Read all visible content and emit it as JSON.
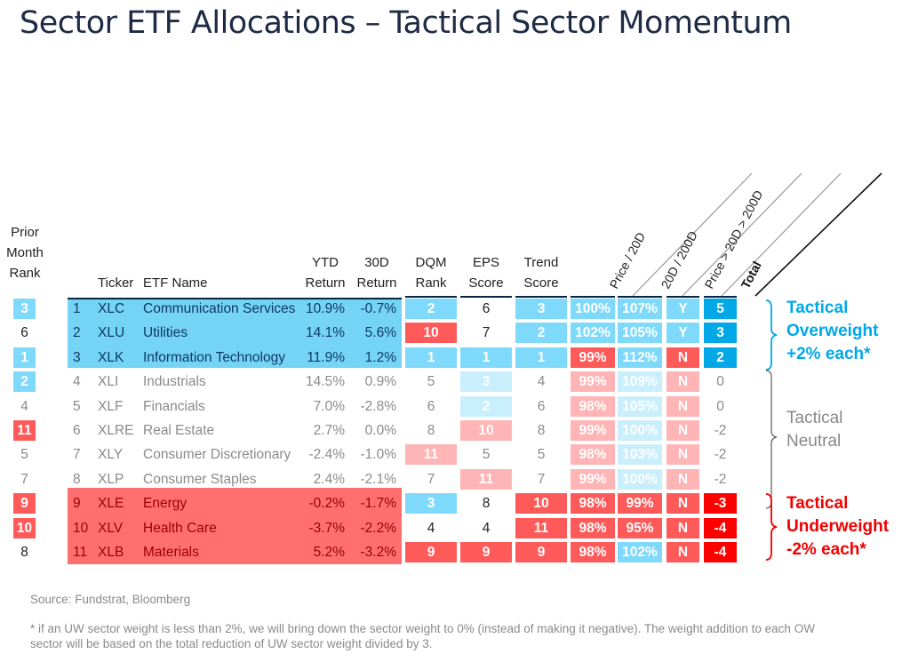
{
  "title": "Sector ETF Allocations – Tactical Sector Momentum",
  "headers": {
    "prior": [
      "Prior",
      "Month",
      "Rank"
    ],
    "ticker": "Ticker",
    "name": "ETF Name",
    "ytd": [
      "YTD",
      "Return"
    ],
    "d30": [
      "30D",
      "Return"
    ],
    "dqm": [
      "DQM",
      "Rank"
    ],
    "eps": [
      "EPS",
      "Score"
    ],
    "trend": [
      "Trend",
      "Score"
    ],
    "diag": [
      "Price / 20D",
      "20D / 200D",
      "Price > 20D > 200D",
      "Total"
    ]
  },
  "colors": {
    "blue": "#7fd9fa",
    "red": "#ff5a5a",
    "light_blue": "#c9eefc",
    "light_red": "#ffb5b5",
    "total_blue": "#00a8e8",
    "total_red": "#ff0000"
  },
  "rows": [
    {
      "group": "ow",
      "prior": "3",
      "prior_c": "blue",
      "n": "1",
      "ticker": "XLC",
      "name": "Communication Services",
      "ytd": "10.9%",
      "d30": "-0.7%",
      "dqm": "2",
      "dqm_c": "blue",
      "eps": "6",
      "eps_c": "none",
      "trend": "3",
      "trend_c": "blue",
      "p20": "100%",
      "p20_c": "blue",
      "r200": "107%",
      "r200_c": "blue",
      "yn": "Y",
      "yn_c": "blue",
      "total": "5",
      "total_c": "dblue"
    },
    {
      "group": "ow",
      "prior": "6",
      "prior_c": "none",
      "n": "2",
      "ticker": "XLU",
      "name": "Utilities",
      "ytd": "14.1%",
      "d30": "5.6%",
      "dqm": "10",
      "dqm_c": "red",
      "eps": "7",
      "eps_c": "none",
      "trend": "2",
      "trend_c": "blue",
      "p20": "102%",
      "p20_c": "blue",
      "r200": "105%",
      "r200_c": "blue",
      "yn": "Y",
      "yn_c": "blue",
      "total": "3",
      "total_c": "dblue"
    },
    {
      "group": "ow",
      "prior": "1",
      "prior_c": "blue",
      "n": "3",
      "ticker": "XLK",
      "name": "Information Technology",
      "ytd": "11.9%",
      "d30": "1.2%",
      "dqm": "1",
      "dqm_c": "blue",
      "eps": "1",
      "eps_c": "blue",
      "trend": "1",
      "trend_c": "blue",
      "p20": "99%",
      "p20_c": "red",
      "r200": "112%",
      "r200_c": "blue",
      "yn": "N",
      "yn_c": "red",
      "total": "2",
      "total_c": "dblue"
    },
    {
      "group": "neutral",
      "prior": "2",
      "prior_c": "blue",
      "n": "4",
      "ticker": "XLI",
      "name": "Industrials",
      "ytd": "14.5%",
      "d30": "0.9%",
      "dqm": "5",
      "dqm_c": "none",
      "eps": "3",
      "eps_c": "lblue",
      "trend": "4",
      "trend_c": "none",
      "p20": "99%",
      "p20_c": "lred",
      "r200": "109%",
      "r200_c": "lblue",
      "yn": "N",
      "yn_c": "lred",
      "total": "0",
      "total_c": "none"
    },
    {
      "group": "neutral",
      "prior": "4",
      "prior_c": "none",
      "n": "5",
      "ticker": "XLF",
      "name": "Financials",
      "ytd": "7.0%",
      "d30": "-2.8%",
      "dqm": "6",
      "dqm_c": "none",
      "eps": "2",
      "eps_c": "lblue",
      "trend": "6",
      "trend_c": "none",
      "p20": "98%",
      "p20_c": "lred",
      "r200": "105%",
      "r200_c": "lblue",
      "yn": "N",
      "yn_c": "lred",
      "total": "0",
      "total_c": "none"
    },
    {
      "group": "neutral",
      "prior": "11",
      "prior_c": "red",
      "n": "6",
      "ticker": "XLRE",
      "name": "Real Estate",
      "ytd": "2.7%",
      "d30": "0.0%",
      "dqm": "8",
      "dqm_c": "none",
      "eps": "10",
      "eps_c": "lred",
      "trend": "8",
      "trend_c": "none",
      "p20": "99%",
      "p20_c": "lred",
      "r200": "100%",
      "r200_c": "lblue",
      "yn": "N",
      "yn_c": "lred",
      "total": "-2",
      "total_c": "none"
    },
    {
      "group": "neutral",
      "prior": "5",
      "prior_c": "none",
      "n": "7",
      "ticker": "XLY",
      "name": "Consumer Discretionary",
      "ytd": "-2.4%",
      "d30": "-1.0%",
      "dqm": "11",
      "dqm_c": "lred",
      "eps": "5",
      "eps_c": "none",
      "trend": "5",
      "trend_c": "none",
      "p20": "98%",
      "p20_c": "lred",
      "r200": "103%",
      "r200_c": "lblue",
      "yn": "N",
      "yn_c": "lred",
      "total": "-2",
      "total_c": "none"
    },
    {
      "group": "neutral",
      "prior": "7",
      "prior_c": "none",
      "n": "8",
      "ticker": "XLP",
      "name": "Consumer Staples",
      "ytd": "2.4%",
      "d30": "-2.1%",
      "dqm": "7",
      "dqm_c": "none",
      "eps": "11",
      "eps_c": "lred",
      "trend": "7",
      "trend_c": "none",
      "p20": "99%",
      "p20_c": "lred",
      "r200": "100%",
      "r200_c": "lblue",
      "yn": "N",
      "yn_c": "lred",
      "total": "-2",
      "total_c": "none"
    },
    {
      "group": "uw",
      "prior": "9",
      "prior_c": "red",
      "n": "9",
      "ticker": "XLE",
      "name": "Energy",
      "ytd": "-0.2%",
      "d30": "-1.7%",
      "dqm": "3",
      "dqm_c": "blue",
      "eps": "8",
      "eps_c": "none",
      "trend": "10",
      "trend_c": "red",
      "p20": "98%",
      "p20_c": "red",
      "r200": "99%",
      "r200_c": "red",
      "yn": "N",
      "yn_c": "red",
      "total": "-3",
      "total_c": "dred"
    },
    {
      "group": "uw",
      "prior": "10",
      "prior_c": "red",
      "n": "10",
      "ticker": "XLV",
      "name": "Health Care",
      "ytd": "-3.7%",
      "d30": "-2.2%",
      "dqm": "4",
      "dqm_c": "none",
      "eps": "4",
      "eps_c": "none",
      "trend": "11",
      "trend_c": "red",
      "p20": "98%",
      "p20_c": "red",
      "r200": "95%",
      "r200_c": "red",
      "yn": "N",
      "yn_c": "red",
      "total": "-4",
      "total_c": "dred"
    },
    {
      "group": "uw",
      "prior": "8",
      "prior_c": "none",
      "n": "11",
      "ticker": "XLB",
      "name": "Materials",
      "ytd": "5.2%",
      "d30": "-3.2%",
      "dqm": "9",
      "dqm_c": "red",
      "eps": "9",
      "eps_c": "red",
      "trend": "9",
      "trend_c": "red",
      "p20": "98%",
      "p20_c": "red",
      "r200": "102%",
      "r200_c": "blue",
      "yn": "N",
      "yn_c": "red",
      "total": "-4",
      "total_c": "dred"
    }
  ],
  "groups": {
    "ow": [
      "Tactical",
      "Overweight",
      "+2% each*"
    ],
    "neutral": [
      "Tactical",
      "Neutral"
    ],
    "uw": [
      "Tactical",
      "Underweight",
      "-2% each*"
    ]
  },
  "source": "Source: Fundstrat, Bloomberg",
  "footnote": [
    "* if an UW sector weight is less than 2%, we will bring down the sector weight to 0% (instead of making it negative). The weight addition to each OW",
    "sector will be based on the total reduction of UW sector weight divided by 3."
  ]
}
